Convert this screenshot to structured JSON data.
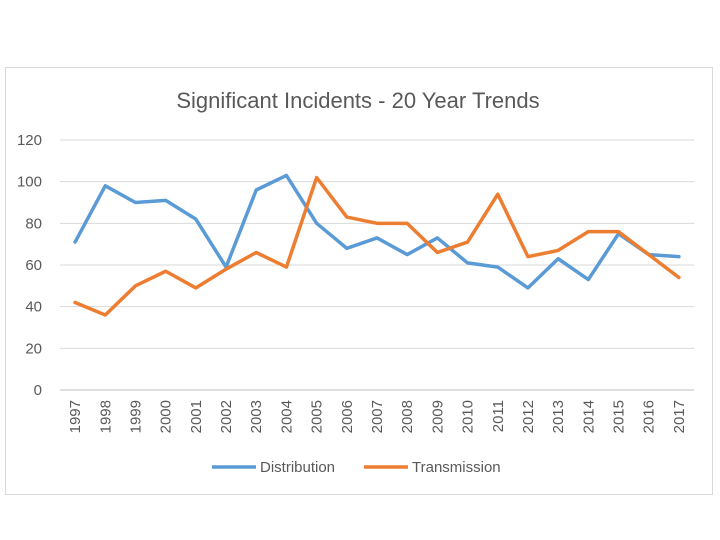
{
  "chart_data": {
    "type": "line",
    "title": "Significant Incidents - 20 Year Trends",
    "xlabel": "",
    "ylabel": "",
    "ylim": [
      0,
      120
    ],
    "yticks": [
      0,
      20,
      40,
      60,
      80,
      100,
      120
    ],
    "grid": true,
    "legend": "bottom",
    "categories": [
      "1997",
      "1998",
      "1999",
      "2000",
      "2001",
      "2002",
      "2003",
      "2004",
      "2005",
      "2006",
      "2007",
      "2008",
      "2009",
      "2010",
      "2011",
      "2012",
      "2013",
      "2014",
      "2015",
      "2016",
      "2017"
    ],
    "series": [
      {
        "name": "Distribution",
        "color": "#5b9bd5",
        "values": [
          71,
          98,
          90,
          91,
          82,
          59,
          96,
          103,
          80,
          68,
          73,
          65,
          73,
          61,
          59,
          49,
          63,
          53,
          75,
          65,
          64
        ]
      },
      {
        "name": "Transmission",
        "color": "#ed7d31",
        "values": [
          42,
          36,
          50,
          57,
          49,
          58,
          66,
          59,
          102,
          83,
          80,
          80,
          66,
          71,
          94,
          64,
          67,
          76,
          76,
          65,
          54
        ]
      }
    ]
  }
}
